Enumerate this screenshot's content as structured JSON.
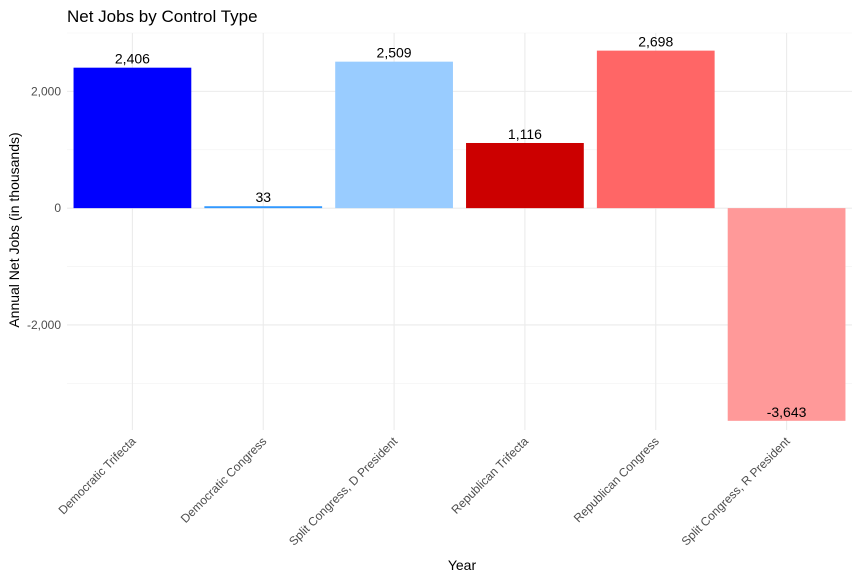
{
  "chart_data": {
    "type": "bar",
    "title": "Net Jobs by Control Type",
    "xlabel": "Year",
    "ylabel": "Annual Net Jobs (in thousands)",
    "categories": [
      "Democratic Trifecta",
      "Democratic Congress",
      "Split Congress, D President",
      "Republican Trifecta",
      "Republican Congress",
      "Split Congress, R President"
    ],
    "values": [
      2406,
      33,
      2509,
      1116,
      2698,
      -3643
    ],
    "value_labels": [
      "2,406",
      "33",
      "2,509",
      "1,116",
      "2,698",
      "-3,643"
    ],
    "colors": [
      "#0000ff",
      "#3399ff",
      "#99ccff",
      "#cc0000",
      "#ff6666",
      "#ff9999"
    ],
    "ylim": [
      -3800,
      3000
    ],
    "yticks": [
      -2000,
      0,
      2000
    ],
    "ytick_labels": [
      "-2,000",
      "0",
      "2,000"
    ],
    "grid": true,
    "legend": "none"
  }
}
